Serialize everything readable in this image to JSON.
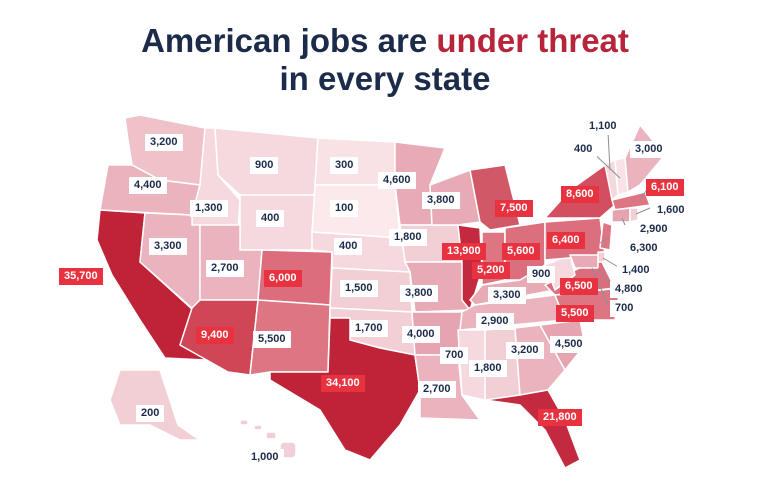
{
  "title": {
    "line1_pre": "American jobs are ",
    "line1_highlight": "under threat",
    "line2": "in every state"
  },
  "colors": {
    "title": "#1c2b4a",
    "highlight": "#b8243a",
    "label_red_bg": "#e8323f",
    "label_white_bg": "#ffffff"
  },
  "states": [
    {
      "id": "WA",
      "value": "3,200"
    },
    {
      "id": "OR",
      "value": "4,400"
    },
    {
      "id": "CA",
      "value": "35,700"
    },
    {
      "id": "ID",
      "value": "1,300"
    },
    {
      "id": "NV",
      "value": "3,300"
    },
    {
      "id": "MT",
      "value": "900"
    },
    {
      "id": "WY",
      "value": "400"
    },
    {
      "id": "UT",
      "value": "2,700"
    },
    {
      "id": "AZ",
      "value": "9,400"
    },
    {
      "id": "CO",
      "value": "6,000"
    },
    {
      "id": "NM",
      "value": "5,500"
    },
    {
      "id": "ND",
      "value": "300"
    },
    {
      "id": "SD",
      "value": "100"
    },
    {
      "id": "NE",
      "value": "400"
    },
    {
      "id": "KS",
      "value": "1,500"
    },
    {
      "id": "OK",
      "value": "1,700"
    },
    {
      "id": "TX",
      "value": "34,100"
    },
    {
      "id": "MN",
      "value": "4,600"
    },
    {
      "id": "IA",
      "value": "1,800"
    },
    {
      "id": "MO",
      "value": "3,800"
    },
    {
      "id": "AR",
      "value": "4,000"
    },
    {
      "id": "LA",
      "value": "2,700"
    },
    {
      "id": "WI",
      "value": "3,800"
    },
    {
      "id": "IL",
      "value": "13,900"
    },
    {
      "id": "MI",
      "value": "7,500"
    },
    {
      "id": "IN",
      "value": "5,200"
    },
    {
      "id": "OH",
      "value": "5,600"
    },
    {
      "id": "KY",
      "value": "3,300"
    },
    {
      "id": "TN",
      "value": "2,900"
    },
    {
      "id": "MS",
      "value": "700"
    },
    {
      "id": "AL",
      "value": "1,800"
    },
    {
      "id": "GA",
      "value": "3,200"
    },
    {
      "id": "FL",
      "value": "21,800"
    },
    {
      "id": "SC",
      "value": "4,500"
    },
    {
      "id": "NC",
      "value": "5,500"
    },
    {
      "id": "VA",
      "value": "6,500"
    },
    {
      "id": "WV",
      "value": "900"
    },
    {
      "id": "PA",
      "value": "6,400"
    },
    {
      "id": "NY",
      "value": "8,600"
    },
    {
      "id": "VT",
      "value": "1,100"
    },
    {
      "id": "NH",
      "value": "400"
    },
    {
      "id": "ME",
      "value": "3,000"
    },
    {
      "id": "MA",
      "value": "6,100"
    },
    {
      "id": "RI",
      "value": "1,600"
    },
    {
      "id": "CT",
      "value": "2,900"
    },
    {
      "id": "NJ",
      "value": "6,300"
    },
    {
      "id": "DE",
      "value": "1,400"
    },
    {
      "id": "MD",
      "value": "4,800"
    },
    {
      "id": "DC",
      "value": "700"
    },
    {
      "id": "AK",
      "value": "200"
    },
    {
      "id": "HI",
      "value": "1,000"
    }
  ]
}
